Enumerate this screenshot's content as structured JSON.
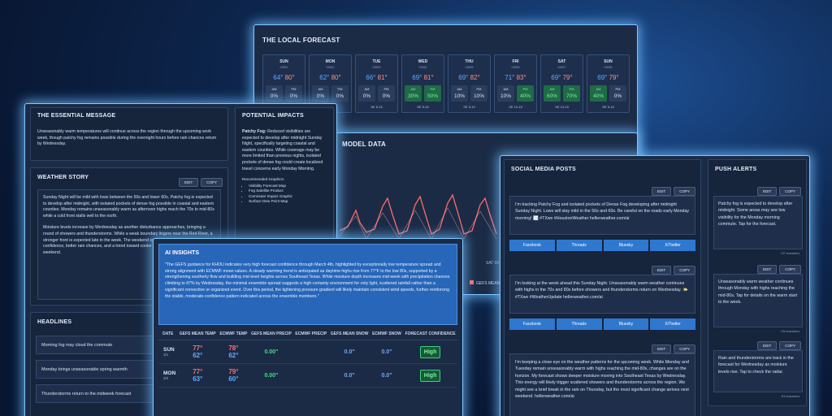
{
  "forecast": {
    "title": "THE LOCAL FORECAST",
    "am": "AM",
    "pm": "PM",
    "days": [
      {
        "day": "SUN",
        "date": "03/01",
        "low": "64°",
        "high": "80°",
        "am": "0%",
        "pm": "0%",
        "wind": "SE 5-10"
      },
      {
        "day": "MON",
        "date": "03/02",
        "low": "62°",
        "high": "80°",
        "am": "0%",
        "pm": "0%",
        "wind": "SE 5-10"
      },
      {
        "day": "TUE",
        "date": "03/03",
        "low": "66°",
        "high": "81°",
        "am": "0%",
        "pm": "0%",
        "wind": "SE 5-15"
      },
      {
        "day": "WED",
        "date": "03/04",
        "low": "69°",
        "high": "81°",
        "am": "30%",
        "pm": "50%",
        "wind": "SE 5-15"
      },
      {
        "day": "THU",
        "date": "03/05",
        "low": "69°",
        "high": "82°",
        "am": "10%",
        "pm": "10%",
        "wind": "SE 5-15"
      },
      {
        "day": "FRI",
        "date": "03/06",
        "low": "71°",
        "high": "83°",
        "am": "10%",
        "pm": "40%",
        "wind": "SE 10-15"
      },
      {
        "day": "SAT",
        "date": "03/07",
        "low": "69°",
        "high": "79°",
        "am": "60%",
        "pm": "70%",
        "wind": "SE 10-15"
      },
      {
        "day": "SUN",
        "date": "03/08",
        "low": "69°",
        "high": "79°",
        "am": "40%",
        "pm": "0%",
        "wind": "SE 5-15"
      }
    ]
  },
  "model_data": {
    "title": "MODEL DATA",
    "legend": "GEFS MEAN",
    "axis_label": "SAT 03"
  },
  "buttons": {
    "edit": "EDIT",
    "copy": "COPY"
  },
  "essential": {
    "title": "THE ESSENTIAL MESSAGE",
    "text": "Unseasonably warm temperatures will continue across the region through the upcoming work week, though patchy fog remains possible during the overnight hours before rain chances return by Wednesday."
  },
  "impacts": {
    "title": "POTENTIAL IMPACTS",
    "lead": "Patchy Fog:",
    "text": "Reduced visibilities are expected to develop after midnight Sunday Night, specifically targeting coastal and eastern counties. While coverage may be more limited than previous nights, isolated pockets of dense fog could create localized travel concerns early Monday Morning.",
    "graphics_title": "Recommended Graphics:",
    "graphics": [
      "Visibility Forecast Map",
      "Fog Satellite Product",
      "Commuter Impact Graphic",
      "Surface Dew Point Map"
    ]
  },
  "story": {
    "title": "WEATHER STORY",
    "paragraphs": [
      "Sunday Night will be mild with lows between the 50s and lower 60s. Patchy fog is expected to develop after midnight, with isolated pockets of dense fog possible in coastal and eastern counties. Monday remains unseasonably warm as afternoon highs reach the 70s to mid-80s while a cold front stalls well to the north.",
      "Moisture levels increase by Wednesday as another disturbance approaches, bringing a round of showers and thunderstorms. While a weak boundary lingers near the Red River, a stronger front is expected late in the week. The weekend system brings a much higher confidence, better rain chances, and a trend toward cooler temperatures for the following weekend."
    ]
  },
  "headlines": {
    "title": "HEADLINES",
    "items": [
      "Morning fog may cloud the commute",
      "Monday brings unseasonable spring warmth",
      "Thunderstorms return to the midweek forecast"
    ]
  },
  "ai": {
    "title": "AI INSIGHTS",
    "text": "\"The GEFS guidance for KHOU indicates very high forecast confidence through March 4th, highlighted by exceptionally low temperature spread and strong alignment with ECMWF mean values. A steady warming trend is anticipated as daytime highs rise from 77°F to the low 80s, supported by a strengthening southerly flow and building mid-level heights across Southeast Texas. While moisture depth increases mid-week with precipitation chances climbing to 87% by Wednesday, the minimal ensemble spread suggests a high-certainty environment for only light, scattered rainfall rather than a significant convective or organized event. Over this period, the tightening pressure gradient will likely maintain consistent wind speeds, further reinforcing the stable, moderate-confidence pattern indicated across the ensemble members.\"",
    "table": {
      "headers": [
        "DATE",
        "GEFS MEAN TEMP",
        "ECMWF TEMP",
        "GEFS MEAN PRECIP",
        "ECMWF PRECIP",
        "GEFS MEAN SNOW",
        "ECMWF SNOW",
        "FORECAST CONFIDENCE"
      ],
      "rows": [
        {
          "day": "SUN",
          "date": "3/1",
          "gefs_temp": [
            "77°",
            "62°"
          ],
          "ecmwf_temp": [
            "78°",
            "62°"
          ],
          "gefs_precip": "0.00\"",
          "ecmwf_precip": null,
          "gefs_snow": "0.0\"",
          "ecmwf_snow": "0.0\"",
          "confidence": "High"
        },
        {
          "day": "MON",
          "date": "3/2",
          "gefs_temp": [
            "77°",
            "63°"
          ],
          "ecmwf_temp": [
            "79°",
            "60°"
          ],
          "gefs_precip": "0.00\"",
          "ecmwf_precip": null,
          "gefs_snow": "0.0\"",
          "ecmwf_snow": "0.0\"",
          "confidence": "High"
        }
      ]
    }
  },
  "social": {
    "title": "SOCIAL MEDIA POSTS",
    "networks": [
      "Facebook",
      "Threads",
      "Bluesky",
      "X/Twitter"
    ],
    "posts": [
      "I'm tracking Patchy Fog and isolated pockets of Dense Fog developing after midnight Sunday Night. Lows will stay mild in the 50s and 60s. Be careful on the roads early Monday morning! 🌫️ #TXwx #HoustonWeather hellerweather.com/ai",
      "I'm looking at the week ahead this Sunday Night. Unseasonably warm weather continues with highs in the 70s and 80s before showers and thunderstorms return on Wednesday. 🌤️ #TXwx #WeatherUpdate hellerweather.com/ai",
      "I'm keeping a close eye on the weather patterns for the upcoming week. While Monday and Tuesday remain unseasonably warm with highs reaching the mid-80s, changes are on the horizon. My forecast shows deeper moisture moving into Southeast Texas by Wednesday. This energy will likely trigger scattered showers and thunderstorms across the region. We might see a brief break in the rain on Thursday, but the most significant change arrives next weekend. hellerweather.com/ai"
    ]
  },
  "push": {
    "title": "PUSH ALERTS",
    "alerts": [
      {
        "text": "Patchy fog is expected to develop after midnight. Some areas may see low visibility for the Monday morning commute. Tap for the forecast.",
        "count": "137 characters"
      },
      {
        "text": "Unseasonably warm weather continues through Monday with highs reaching the mid-80s. Tap for details on the warm start to the week.",
        "count": "130 characters"
      },
      {
        "text": "Rain and thunderstorms are back in the forecast for Wednesday as moisture levels rise. Tap to check the radar.",
        "count": "110 characters"
      }
    ]
  }
}
